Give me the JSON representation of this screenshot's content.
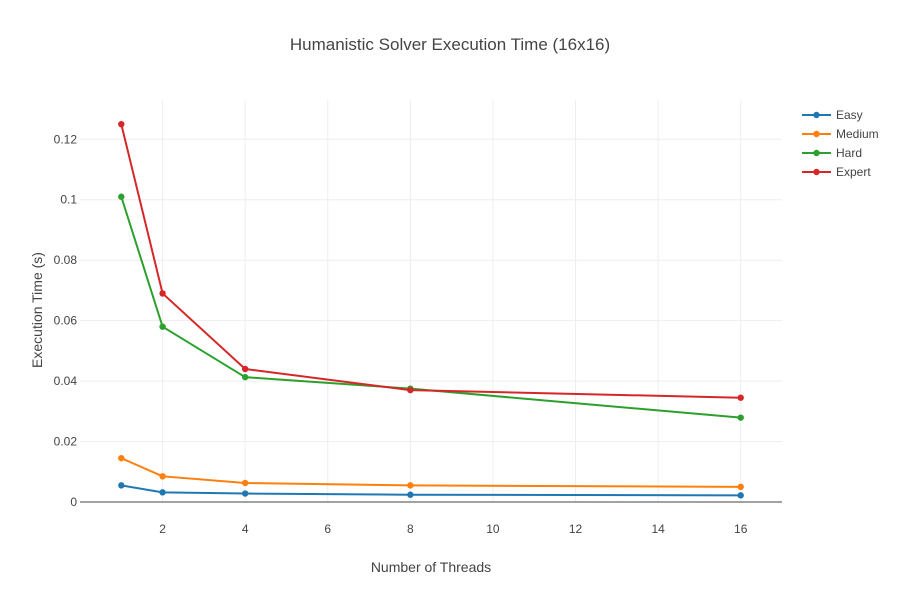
{
  "chart_data": {
    "type": "line",
    "title": "Humanistic Solver Execution Time (16x16)",
    "xlabel": "Number of Threads",
    "ylabel": "Execution Time (s)",
    "x": [
      1,
      2,
      4,
      8,
      16
    ],
    "xlim": [
      0,
      17
    ],
    "ylim": [
      0,
      0.133
    ],
    "x_ticks": [
      2,
      4,
      6,
      8,
      10,
      12,
      14,
      16
    ],
    "y_ticks": [
      0,
      0.02,
      0.04,
      0.06,
      0.08,
      0.1,
      0.12
    ],
    "y_tick_labels": [
      "0",
      "0.02",
      "0.04",
      "0.06",
      "0.08",
      "0.1",
      "0.12"
    ],
    "grid": true,
    "legend_position": "top-right",
    "series": [
      {
        "name": "Easy",
        "color": "#1f77b4",
        "values": [
          0.0055,
          0.0032,
          0.0028,
          0.0024,
          0.0022
        ]
      },
      {
        "name": "Medium",
        "color": "#ff7f0e",
        "values": [
          0.0145,
          0.0085,
          0.0063,
          0.0055,
          0.005
        ]
      },
      {
        "name": "Hard",
        "color": "#2ca02c",
        "values": [
          0.101,
          0.058,
          0.0413,
          0.0375,
          0.0279
        ]
      },
      {
        "name": "Expert",
        "color": "#d62728",
        "values": [
          0.125,
          0.069,
          0.044,
          0.037,
          0.0345
        ]
      }
    ]
  }
}
